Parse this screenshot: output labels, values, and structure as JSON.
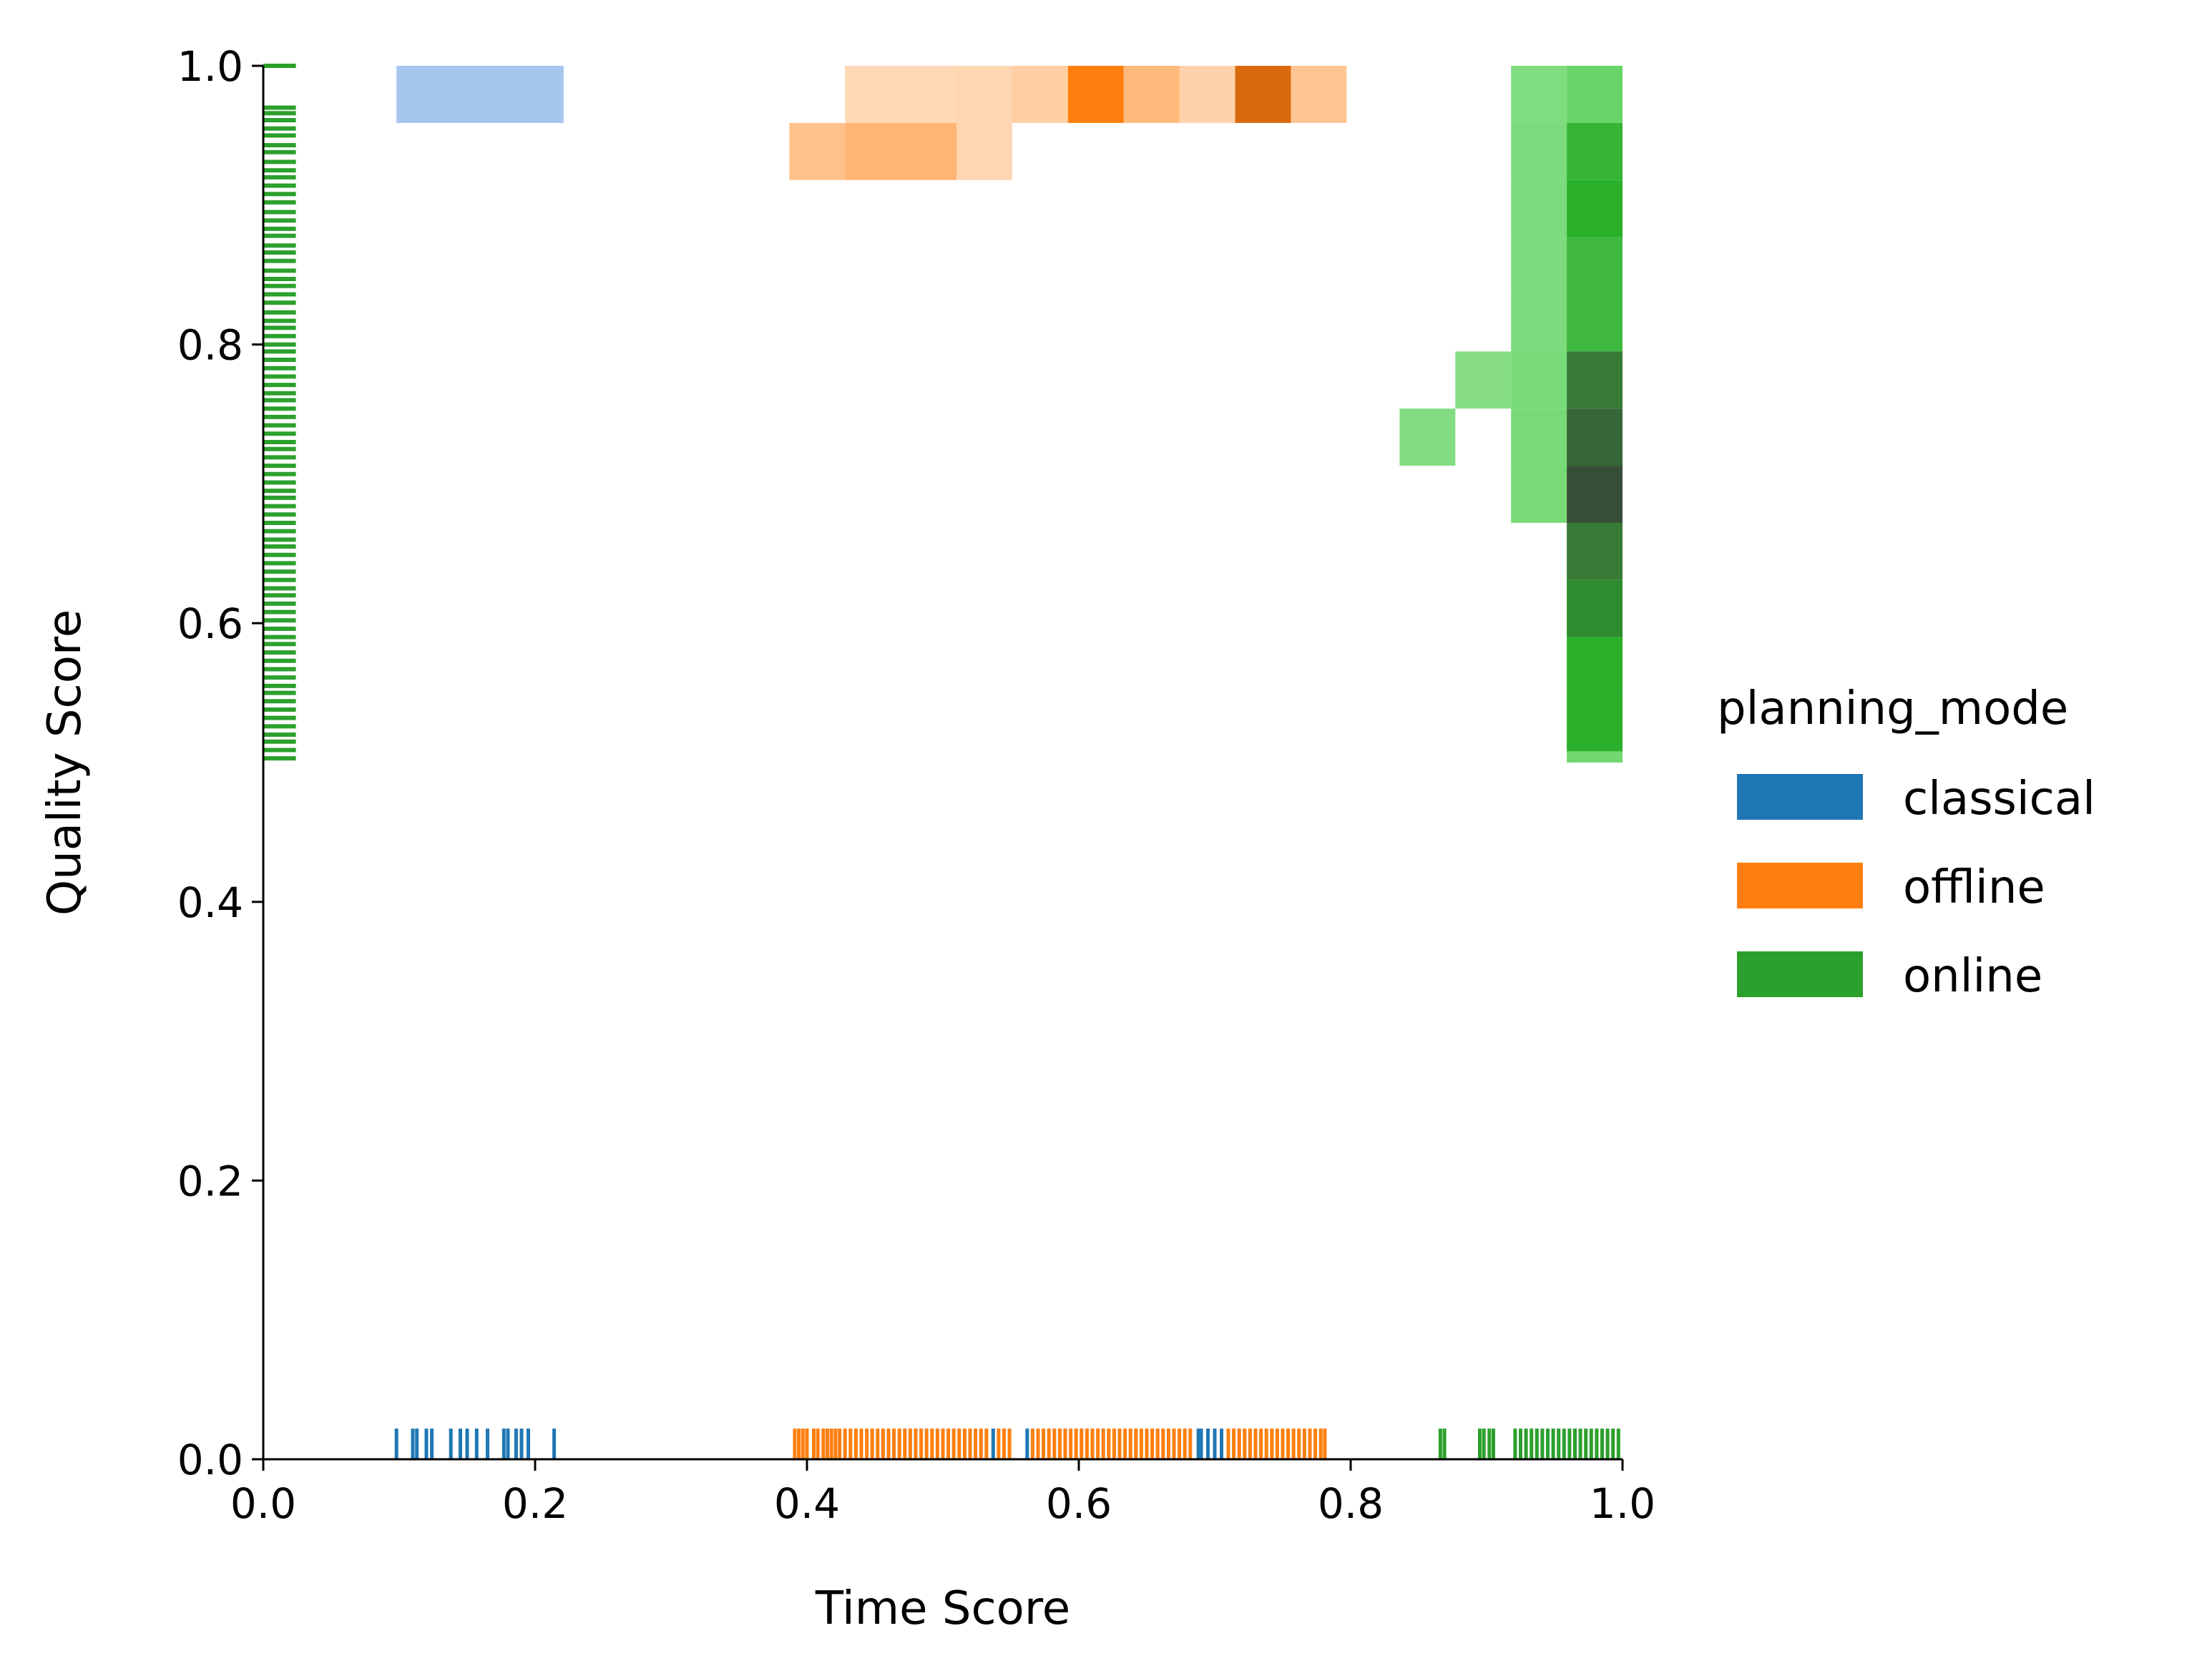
{
  "chart_data": {
    "type": "heatmap",
    "xlabel": "Time Score",
    "ylabel": "Quality Score",
    "xlim": [
      0.0,
      1.0
    ],
    "ylim": [
      0.0,
      1.0
    ],
    "xticks": [
      "0.0",
      "0.2",
      "0.4",
      "0.6",
      "0.8",
      "1.0"
    ],
    "yticks": [
      "0.0",
      "0.2",
      "0.4",
      "0.6",
      "0.8",
      "1.0"
    ],
    "grid": false,
    "legend": {
      "title": "planning_mode",
      "placement": "right",
      "entries": [
        {
          "label": "classical",
          "color": "#1f77b4"
        },
        {
          "label": "offline",
          "color": "#ff7f0e"
        },
        {
          "label": "online",
          "color": "#2ca02c"
        }
      ]
    },
    "series": [
      {
        "name": "classical",
        "color": "#1f77b4",
        "cells": [
          {
            "x0": 0.098,
            "x1": 0.221,
            "y0": 0.959,
            "y1": 1.0,
            "alpha": 0.4
          }
        ],
        "x_rug": [
          0.098,
          0.11,
          0.113,
          0.12,
          0.124,
          0.138,
          0.145,
          0.15,
          0.157,
          0.165,
          0.177,
          0.18,
          0.186,
          0.19,
          0.195,
          0.214,
          0.537,
          0.562,
          0.688,
          0.69,
          0.695,
          0.7,
          0.705
        ]
      },
      {
        "name": "offline",
        "color": "#ff7f0e",
        "cells": [
          {
            "x0": 0.428,
            "x1": 0.469,
            "y0": 0.959,
            "y1": 1.0,
            "alpha": 0.3
          },
          {
            "x0": 0.469,
            "x1": 0.51,
            "y0": 0.959,
            "y1": 1.0,
            "alpha": 0.3
          },
          {
            "x0": 0.51,
            "x1": 0.551,
            "y0": 0.959,
            "y1": 1.0,
            "alpha": 0.32
          },
          {
            "x0": 0.551,
            "x1": 0.592,
            "y0": 0.959,
            "y1": 1.0,
            "alpha": 0.38
          },
          {
            "x0": 0.592,
            "x1": 0.633,
            "y0": 0.959,
            "y1": 1.0,
            "alpha": 1.0
          },
          {
            "x0": 0.633,
            "x1": 0.674,
            "y0": 0.959,
            "y1": 1.0,
            "alpha": 0.55
          },
          {
            "x0": 0.674,
            "x1": 0.715,
            "y0": 0.959,
            "y1": 1.0,
            "alpha": 0.35
          },
          {
            "x0": 0.715,
            "x1": 0.756,
            "y0": 0.959,
            "y1": 1.0,
            "alpha": 1.0,
            "dark": true
          },
          {
            "x0": 0.756,
            "x1": 0.797,
            "y0": 0.959,
            "y1": 1.0,
            "alpha": 0.45
          },
          {
            "x0": 0.387,
            "x1": 0.428,
            "y0": 0.918,
            "y1": 0.959,
            "alpha": 0.48
          },
          {
            "x0": 0.428,
            "x1": 0.469,
            "y0": 0.918,
            "y1": 0.959,
            "alpha": 0.58
          },
          {
            "x0": 0.469,
            "x1": 0.51,
            "y0": 0.918,
            "y1": 0.959,
            "alpha": 0.58
          },
          {
            "x0": 0.51,
            "x1": 0.551,
            "y0": 0.918,
            "y1": 0.959,
            "alpha": 0.32
          }
        ],
        "x_rug": [
          0.391,
          0.394,
          0.397,
          0.4,
          0.405,
          0.408,
          0.412,
          0.415,
          0.418,
          0.421,
          0.424,
          0.428,
          0.432,
          0.436,
          0.44,
          0.444,
          0.448,
          0.452,
          0.456,
          0.46,
          0.464,
          0.468,
          0.472,
          0.476,
          0.48,
          0.484,
          0.488,
          0.492,
          0.496,
          0.5,
          0.504,
          0.508,
          0.512,
          0.516,
          0.52,
          0.524,
          0.528,
          0.532,
          0.541,
          0.545,
          0.549,
          0.566,
          0.57,
          0.574,
          0.578,
          0.582,
          0.586,
          0.59,
          0.594,
          0.598,
          0.602,
          0.606,
          0.61,
          0.614,
          0.618,
          0.622,
          0.626,
          0.63,
          0.634,
          0.638,
          0.642,
          0.646,
          0.65,
          0.654,
          0.658,
          0.662,
          0.666,
          0.67,
          0.674,
          0.678,
          0.682,
          0.71,
          0.714,
          0.718,
          0.722,
          0.726,
          0.73,
          0.734,
          0.738,
          0.742,
          0.746,
          0.75,
          0.754,
          0.758,
          0.762,
          0.766,
          0.77,
          0.774,
          0.778,
          0.781
        ]
      },
      {
        "name": "online",
        "color": "#2ca02c",
        "cells": [
          {
            "x0": 0.918,
            "x1": 0.959,
            "y0": 0.959,
            "y1": 1.0,
            "alpha": 0.7,
            "light": true
          },
          {
            "x0": 0.959,
            "x1": 1.0,
            "y0": 0.959,
            "y1": 1.0,
            "alpha": 0.85,
            "light": true
          },
          {
            "x0": 0.918,
            "x1": 0.959,
            "y0": 0.918,
            "y1": 0.959,
            "alpha": 0.72,
            "light": true
          },
          {
            "x0": 0.959,
            "x1": 1.0,
            "y0": 0.918,
            "y1": 0.959,
            "alpha": 0.95
          },
          {
            "x0": 0.918,
            "x1": 0.959,
            "y0": 0.877,
            "y1": 0.918,
            "alpha": 0.72,
            "light": true
          },
          {
            "x0": 0.959,
            "x1": 1.0,
            "y0": 0.877,
            "y1": 0.918,
            "alpha": 1.0
          },
          {
            "x0": 0.918,
            "x1": 0.959,
            "y0": 0.836,
            "y1": 0.877,
            "alpha": 0.72,
            "light": true
          },
          {
            "x0": 0.959,
            "x1": 1.0,
            "y0": 0.836,
            "y1": 0.877,
            "alpha": 0.9
          },
          {
            "x0": 0.918,
            "x1": 0.959,
            "y0": 0.795,
            "y1": 0.836,
            "alpha": 0.72,
            "light": true
          },
          {
            "x0": 0.959,
            "x1": 1.0,
            "y0": 0.795,
            "y1": 0.836,
            "alpha": 0.9
          },
          {
            "x0": 0.877,
            "x1": 0.918,
            "y0": 0.754,
            "y1": 0.795,
            "alpha": 0.65,
            "light": true
          },
          {
            "x0": 0.918,
            "x1": 0.959,
            "y0": 0.754,
            "y1": 0.795,
            "alpha": 0.75,
            "light": true
          },
          {
            "x0": 0.959,
            "x1": 1.0,
            "y0": 0.754,
            "y1": 0.795,
            "alpha": 1.0,
            "dark": true,
            "level": 1
          },
          {
            "x0": 0.836,
            "x1": 0.877,
            "y0": 0.713,
            "y1": 0.754,
            "alpha": 0.68,
            "light": true
          },
          {
            "x0": 0.918,
            "x1": 0.959,
            "y0": 0.713,
            "y1": 0.754,
            "alpha": 0.75,
            "light": true
          },
          {
            "x0": 0.959,
            "x1": 1.0,
            "y0": 0.713,
            "y1": 0.754,
            "alpha": 1.0,
            "dark": true,
            "level": 2
          },
          {
            "x0": 0.918,
            "x1": 0.959,
            "y0": 0.672,
            "y1": 0.713,
            "alpha": 0.75,
            "light": true
          },
          {
            "x0": 0.959,
            "x1": 1.0,
            "y0": 0.672,
            "y1": 0.713,
            "alpha": 1.0,
            "dark": true,
            "level": 3
          },
          {
            "x0": 0.959,
            "x1": 1.0,
            "y0": 0.631,
            "y1": 0.672,
            "alpha": 1.0,
            "dark": true,
            "level": 1
          },
          {
            "x0": 0.959,
            "x1": 1.0,
            "y0": 0.59,
            "y1": 0.631,
            "alpha": 1.0,
            "dark": true,
            "level": 0
          },
          {
            "x0": 0.959,
            "x1": 1.0,
            "y0": 0.549,
            "y1": 0.59,
            "alpha": 1.0
          },
          {
            "x0": 0.959,
            "x1": 1.0,
            "y0": 0.508,
            "y1": 0.549,
            "alpha": 1.0
          },
          {
            "x0": 0.959,
            "x1": 1.0,
            "y0": 0.5,
            "y1": 0.508,
            "alpha": 0.78,
            "light": true
          },
          {
            "x0": 0.959,
            "x1": 1.0,
            "y0": 0.5,
            "y1": 0.508,
            "alpha": 0.0
          }
        ],
        "x_rug": [
          0.866,
          0.869,
          0.895,
          0.898,
          0.902,
          0.905,
          0.921,
          0.925,
          0.929,
          0.933,
          0.937,
          0.941,
          0.945,
          0.949,
          0.953,
          0.957,
          0.961,
          0.965,
          0.969,
          0.973,
          0.977,
          0.981,
          0.985,
          0.989,
          0.993,
          0.997
        ],
        "y_rug": [
          1.0,
          0.97,
          0.966,
          0.961,
          0.955,
          0.95,
          0.943,
          0.938,
          0.931,
          0.925,
          0.92,
          0.914,
          0.908,
          0.902,
          0.895,
          0.889,
          0.883,
          0.878,
          0.871,
          0.866,
          0.86,
          0.853,
          0.847,
          0.842,
          0.836,
          0.83,
          0.823,
          0.817,
          0.812,
          0.806,
          0.8,
          0.795,
          0.789,
          0.783,
          0.777,
          0.771,
          0.765,
          0.76,
          0.754,
          0.748,
          0.742,
          0.736,
          0.73,
          0.725,
          0.719,
          0.713,
          0.707,
          0.701,
          0.695,
          0.69,
          0.684,
          0.678,
          0.672,
          0.666,
          0.66,
          0.655,
          0.649,
          0.643,
          0.637,
          0.631,
          0.625,
          0.62,
          0.614,
          0.608,
          0.602,
          0.596,
          0.59,
          0.585,
          0.579,
          0.573,
          0.567,
          0.561,
          0.555,
          0.55,
          0.544,
          0.538,
          0.532,
          0.526,
          0.52,
          0.515,
          0.509,
          0.503
        ]
      }
    ]
  }
}
